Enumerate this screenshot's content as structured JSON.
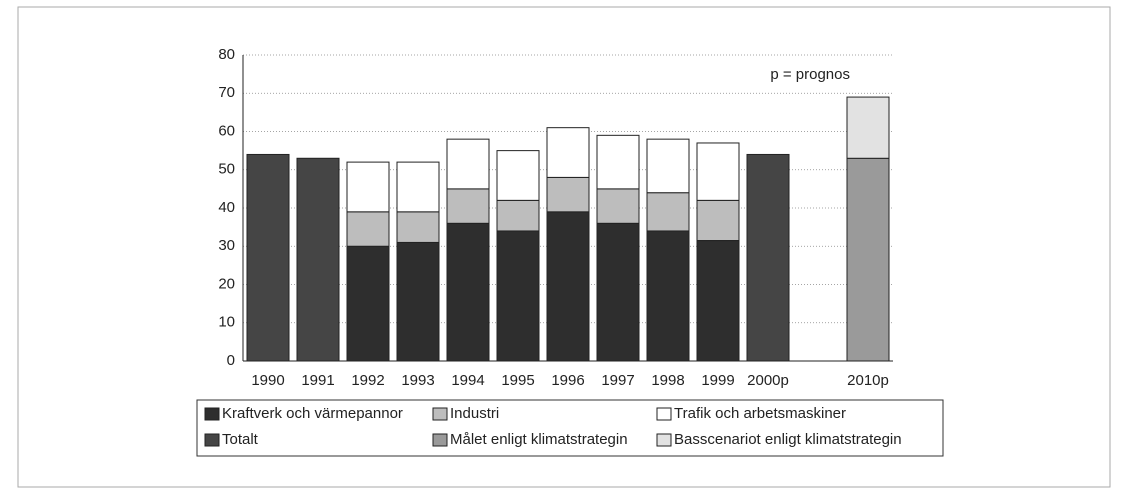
{
  "chart_data": {
    "type": "stacked-bar",
    "annotation": "p = prognos",
    "categories": [
      "1990",
      "1991",
      "1992",
      "1993",
      "1994",
      "1995",
      "1996",
      "1997",
      "1998",
      "1999",
      "2000p",
      null,
      "2010p"
    ],
    "series": [
      {
        "name": "Kraftverk och värmepannor",
        "color": "#2e2e2e",
        "values": [
          null,
          null,
          30,
          31,
          36,
          34,
          39,
          36,
          34,
          31.5,
          null,
          null,
          null
        ]
      },
      {
        "name": "Industri",
        "color": "#bdbdbd",
        "values": [
          null,
          null,
          9,
          8,
          9,
          8,
          9,
          9,
          10,
          10.5,
          null,
          null,
          null
        ]
      },
      {
        "name": "Trafik och arbetsmaskiner",
        "color": "#ffffff",
        "values": [
          null,
          null,
          13,
          13,
          13,
          13,
          13,
          14,
          14,
          15,
          null,
          null,
          null
        ]
      },
      {
        "name": "Totalt",
        "color": "#454545",
        "values": [
          54,
          53,
          null,
          null,
          null,
          null,
          null,
          null,
          null,
          null,
          54,
          null,
          null
        ]
      },
      {
        "name": "Målet enligt klimatstrategin",
        "color": "#9a9a9a",
        "values": [
          null,
          null,
          null,
          null,
          null,
          null,
          null,
          null,
          null,
          null,
          null,
          null,
          53
        ]
      },
      {
        "name": "Basscenariot enligt klimatstrategin",
        "color": "#e2e2e2",
        "values": [
          null,
          null,
          null,
          null,
          null,
          null,
          null,
          null,
          null,
          null,
          null,
          null,
          16
        ]
      }
    ],
    "ylim": [
      0,
      80
    ],
    "yticks": [
      0,
      10,
      20,
      30,
      40,
      50,
      60,
      70,
      80
    ],
    "grid": true,
    "legend": "bottom"
  }
}
